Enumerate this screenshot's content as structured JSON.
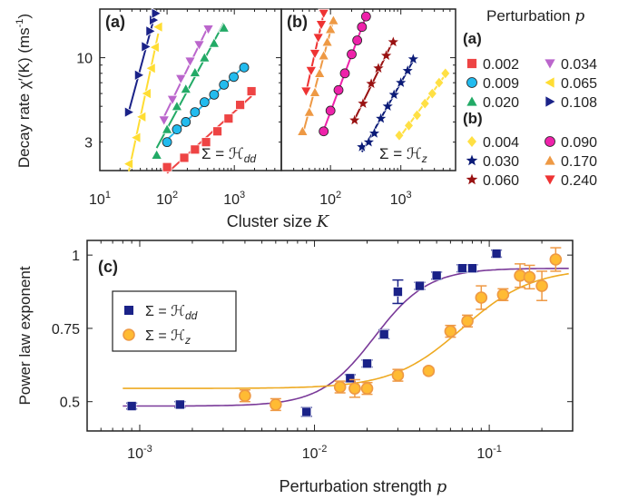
{
  "colors": {
    "a_0_002": "#ee4444",
    "a_0_009": "#22bbee",
    "a_0_020": "#22aa66",
    "a_0_034": "#bb66cc",
    "a_0_065": "#ffdd33",
    "a_0_108": "#1a2288",
    "b_0_004": "#ffe044",
    "b_0_030": "#0a1a77",
    "b_0_060": "#991111",
    "b_0_090": "#ee22aa",
    "b_0_170": "#ee9944",
    "b_0_240": "#ee3333",
    "c_hdd": "#1a2288",
    "c_hz": "#ffbb33",
    "c_hdd_fit": "#7a3a99",
    "c_hz_fit": "#eeaa22",
    "c_hz_err": "#ee9944"
  },
  "legend": {
    "title": "Perturbation ",
    "title_var": "p",
    "group_a": "(a)",
    "group_b": "(b)"
  },
  "chart_data": [
    {
      "type": "line",
      "panel": "(a)",
      "annotation": "Σ = ℋ",
      "annotation_sub": "dd",
      "xlabel": "Cluster size ",
      "xlabel_var": "K",
      "ylabel": "Decay rate  χ′(K) (ms",
      "ylabel_sup": "-1",
      "ylabel_end": ")",
      "x_scale": "log",
      "y_scale": "log",
      "xlim": [
        10,
        5000
      ],
      "ylim": [
        2,
        20
      ],
      "xticks": [
        {
          "value": 10,
          "base": "10",
          "exp": "1"
        },
        {
          "value": 100,
          "base": "10",
          "exp": "2"
        },
        {
          "value": 1000,
          "base": "10",
          "exp": "3"
        }
      ],
      "yticks": [
        {
          "value": 3,
          "label": "3"
        },
        {
          "value": 10,
          "label": "10"
        }
      ],
      "series": [
        {
          "name": "0.002",
          "marker": "square",
          "color_key": "a_0_002",
          "x": [
            100,
            180,
            260,
            380,
            560,
            820,
            1220,
            1800
          ],
          "y": [
            2.1,
            2.4,
            2.7,
            3.0,
            3.5,
            4.2,
            5.1,
            6.2
          ]
        },
        {
          "name": "0.009",
          "marker": "circle",
          "color_key": "a_0_009",
          "x": [
            100,
            140,
            190,
            260,
            360,
            500,
            700,
            980,
            1400
          ],
          "y": [
            3.0,
            3.6,
            4.0,
            4.6,
            5.3,
            5.9,
            6.8,
            7.6,
            8.7
          ]
        },
        {
          "name": "0.020",
          "marker": "triangle-up",
          "color_key": "a_0_020",
          "x": [
            70,
            100,
            140,
            190,
            260,
            360,
            500,
            700
          ],
          "y": [
            2.5,
            3.6,
            5.0,
            6.4,
            8.1,
            10.0,
            12.3,
            15.3
          ]
        },
        {
          "name": "0.034",
          "marker": "triangle-down",
          "color_key": "a_0_034",
          "x": [
            90,
            120,
            160,
            220,
            300,
            410
          ],
          "y": [
            4.1,
            5.5,
            7.4,
            9.5,
            12.0,
            15.0
          ]
        },
        {
          "name": "0.065",
          "marker": "triangle-left",
          "color_key": "a_0_065",
          "x": [
            27,
            35,
            42,
            50,
            58,
            66,
            74
          ],
          "y": [
            2.2,
            3.2,
            4.3,
            6.0,
            8.6,
            11.6,
            15.5
          ]
        },
        {
          "name": "0.108",
          "marker": "triangle-right",
          "color_key": "a_0_108",
          "x": [
            27,
            38,
            48,
            56,
            63,
            68
          ],
          "y": [
            4.6,
            7.8,
            11.7,
            14.6,
            17.1,
            18.8
          ]
        }
      ]
    },
    {
      "type": "line",
      "panel": "(b)",
      "annotation": "Σ = ℋ",
      "annotation_sub": "z",
      "x_scale": "log",
      "y_scale": "log",
      "xlim": [
        20,
        6000
      ],
      "ylim": [
        2,
        20
      ],
      "xticks": [
        {
          "value": 100,
          "base": "10",
          "exp": "2"
        },
        {
          "value": 1000,
          "base": "10",
          "exp": "3"
        }
      ],
      "series": [
        {
          "name": "0.004",
          "marker": "diamond",
          "color_key": "b_0_004",
          "x": [
            950,
            1300,
            1700,
            2200,
            2800,
            3500,
            4300
          ],
          "y": [
            3.3,
            3.8,
            4.4,
            5.2,
            6.0,
            7.0,
            8.0
          ]
        },
        {
          "name": "0.030",
          "marker": "star",
          "color_key": "b_0_030",
          "x": [
            280,
            350,
            420,
            520,
            650,
            800,
            1000,
            1250,
            1500
          ],
          "y": [
            2.8,
            3.0,
            3.4,
            4.2,
            5.0,
            5.9,
            7.0,
            8.3,
            9.8
          ]
        },
        {
          "name": "0.060",
          "marker": "star",
          "color_key": "b_0_060",
          "x": [
            220,
            290,
            380,
            480,
            620,
            780
          ],
          "y": [
            4.1,
            5.2,
            6.9,
            8.6,
            10.3,
            12.5
          ]
        },
        {
          "name": "0.090",
          "marker": "circle",
          "color_key": "b_0_090",
          "x": [
            80,
            100,
            130,
            160,
            200,
            240,
            280,
            320
          ],
          "y": [
            3.5,
            4.7,
            6.3,
            8.0,
            10.5,
            12.8,
            15.5,
            18.0
          ]
        },
        {
          "name": "0.170",
          "marker": "triangle-up",
          "color_key": "b_0_170",
          "x": [
            40,
            50,
            60,
            70,
            80,
            90,
            100,
            110
          ],
          "y": [
            3.5,
            4.6,
            6.1,
            8.0,
            10.3,
            12.5,
            15.0,
            17.0
          ]
        },
        {
          "name": "0.240",
          "marker": "triangle-down",
          "color_key": "b_0_240",
          "x": [
            45,
            53,
            60,
            67,
            74,
            80
          ],
          "y": [
            6.2,
            8.3,
            10.6,
            13.3,
            16.0,
            18.8
          ]
        }
      ]
    },
    {
      "type": "scatter",
      "panel": "(c)",
      "xlabel": "Perturbation strength ",
      "xlabel_var": "p",
      "ylabel": "Power law exponent",
      "x_scale": "log",
      "xlim": [
        0.0005,
        0.3
      ],
      "ylim": [
        0.4,
        1.05
      ],
      "xticks": [
        {
          "value": 0.001,
          "base": "10",
          "exp": "-3"
        },
        {
          "value": 0.01,
          "base": "10",
          "exp": "-2"
        },
        {
          "value": 0.1,
          "base": "10",
          "exp": "-1"
        }
      ],
      "yticks": [
        {
          "value": 0.5,
          "label": "0.5"
        },
        {
          "value": 0.75,
          "label": "0.75"
        },
        {
          "value": 1,
          "label": "1"
        }
      ],
      "series": [
        {
          "name": "Σ = ℋ",
          "name_sub": "dd",
          "marker": "square",
          "color_key": "c_hdd",
          "x": [
            0.0009,
            0.0017,
            0.009,
            0.016,
            0.02,
            0.025,
            0.03,
            0.04,
            0.05,
            0.07,
            0.08,
            0.11
          ],
          "y": [
            0.485,
            0.49,
            0.465,
            0.58,
            0.63,
            0.73,
            0.875,
            0.895,
            0.93,
            0.955,
            0.955,
            1.005
          ],
          "err": [
            0.01,
            0.01,
            0.015,
            0.012,
            0.012,
            0.015,
            0.04,
            0.012,
            0.012,
            0.012,
            0.012,
            0.012
          ]
        },
        {
          "name": "Σ = ℋ",
          "name_sub": "z",
          "marker": "circle",
          "color_key": "c_hz",
          "x": [
            0.004,
            0.006,
            0.014,
            0.017,
            0.02,
            0.03,
            0.045,
            0.06,
            0.075,
            0.09,
            0.12,
            0.15,
            0.17,
            0.2,
            0.24
          ],
          "y": [
            0.52,
            0.49,
            0.55,
            0.545,
            0.545,
            0.59,
            0.605,
            0.74,
            0.775,
            0.855,
            0.865,
            0.93,
            0.925,
            0.895,
            0.985
          ],
          "err": [
            0.02,
            0.02,
            0.02,
            0.03,
            0.02,
            0.02,
            0.01,
            0.02,
            0.02,
            0.04,
            0.02,
            0.04,
            0.04,
            0.05,
            0.04
          ]
        }
      ],
      "fits": [
        {
          "series": "Σ = ℋdd",
          "color_key": "c_hdd_fit",
          "lower": 0.485,
          "upper": 0.955,
          "center": 0.022,
          "slope": 6.5
        },
        {
          "series": "Σ = ℋz",
          "color_key": "c_hz_fit",
          "lower": 0.545,
          "upper": 0.955,
          "center": 0.07,
          "slope": 5.0
        }
      ]
    }
  ]
}
